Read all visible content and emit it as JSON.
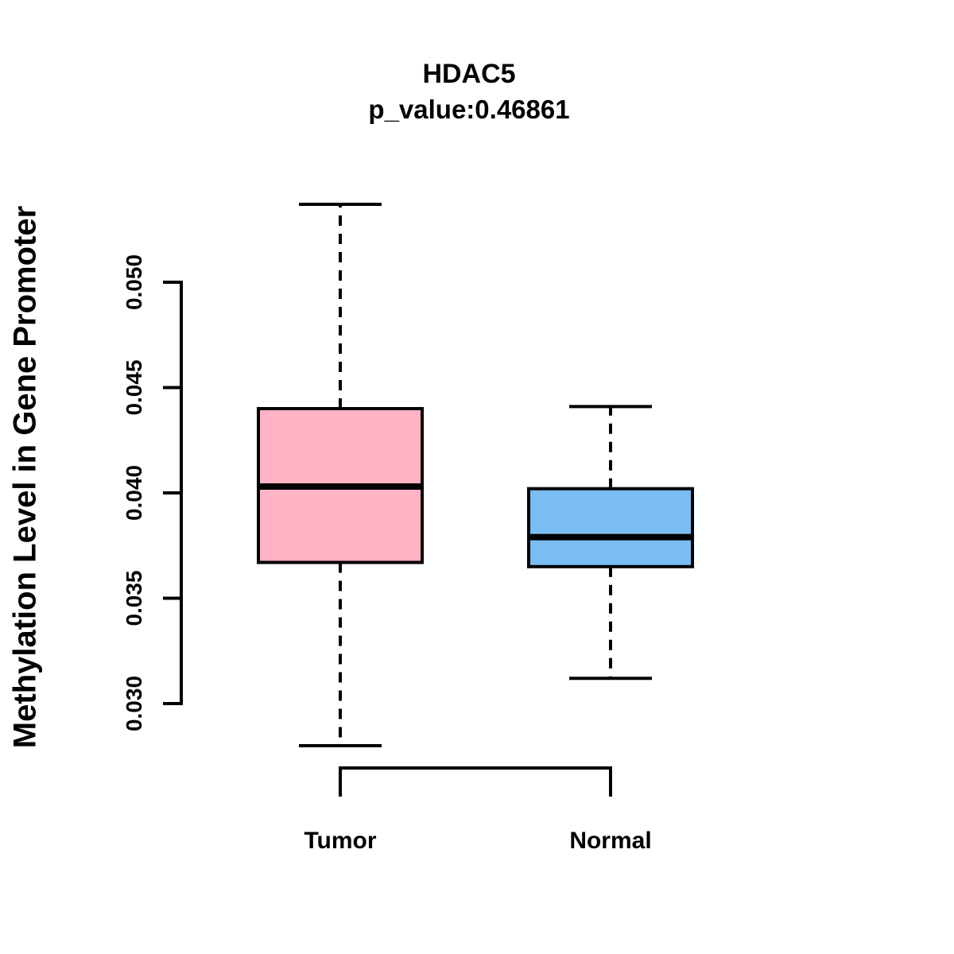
{
  "figure": {
    "background_color": "#ffffff",
    "text_color": "#000000"
  },
  "chart_data": {
    "type": "boxplot",
    "title": "HDAC5",
    "subtitle": "p_value:0.46861",
    "ylabel": "Methylation Level in Gene Promoter",
    "xlabel": "",
    "categories": [
      "Tumor",
      "Normal"
    ],
    "ylim": [
      0.03,
      0.05
    ],
    "yticks": [
      0.03,
      0.035,
      0.04,
      0.045,
      0.05
    ],
    "ytick_labels": [
      "0.030",
      "0.035",
      "0.040",
      "0.045",
      "0.050"
    ],
    "grid": false,
    "legend": "none",
    "axis_color": "#000000",
    "series": [
      {
        "name": "Tumor",
        "color": "#FFB3C5",
        "whisker_low": 0.028,
        "q1": 0.0367,
        "median": 0.0403,
        "q3": 0.044,
        "whisker_high": 0.0537
      },
      {
        "name": "Normal",
        "color": "#79BDF2",
        "whisker_low": 0.0312,
        "q1": 0.0365,
        "median": 0.0379,
        "q3": 0.0402,
        "whisker_high": 0.0441
      }
    ]
  }
}
